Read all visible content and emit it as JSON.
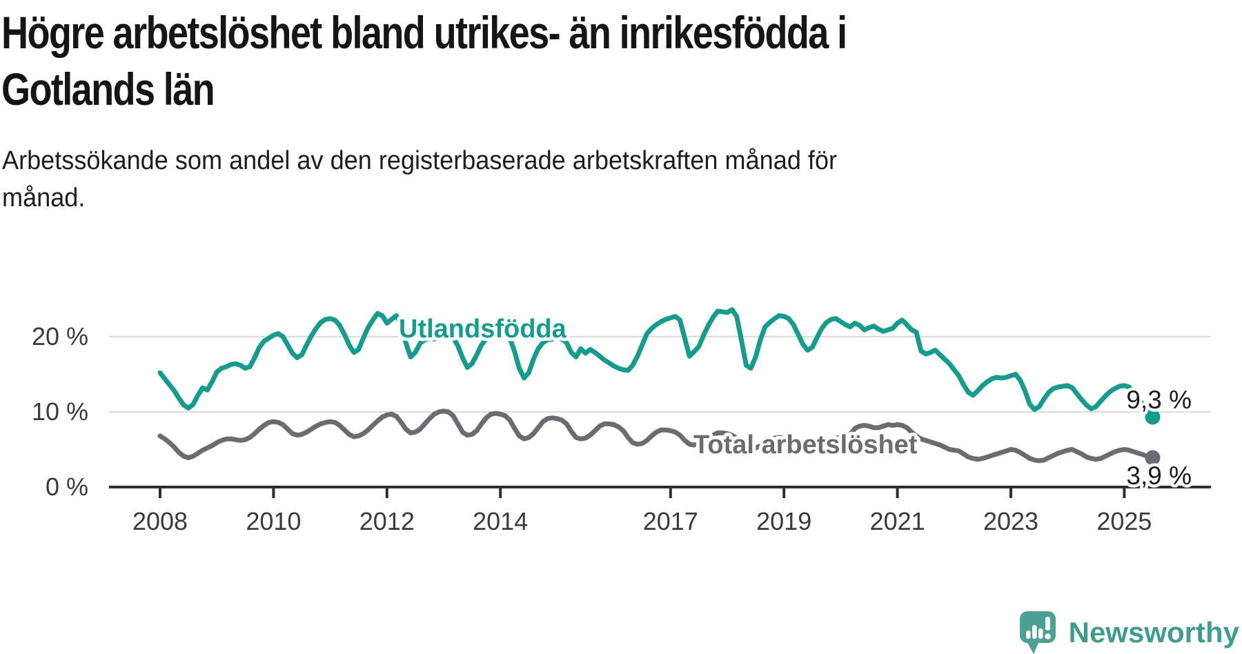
{
  "header": {
    "title_line1": "Högre arbetslöshet bland utrikes- än inrikesfödda i",
    "title_line2": "Gotlands län",
    "subtitle_line1": "Arbetssökande som andel av den registerbaserade arbetskraften månad för",
    "subtitle_line2": "månad."
  },
  "colors": {
    "accent_teal": "#169B8C",
    "series_gray": "#6B6B72",
    "axis": "#2E2E2E",
    "grid": "#DBDBDB",
    "tick_text": "#3A3A3A",
    "value_text": "#1A1A1A",
    "brand_teal": "#3F9C8E",
    "logo_teal": "#4CA094"
  },
  "chart_data": {
    "type": "line",
    "unit": "%",
    "x_start": "2008-01",
    "x_end": "2025-07",
    "x_tick_labels": [
      "2008",
      "2010",
      "2012",
      "2014",
      "2017",
      "2019",
      "2021",
      "2023",
      "2025"
    ],
    "y_ticks": [
      {
        "value": 0,
        "label": "0 %"
      },
      {
        "value": 10,
        "label": "10 %"
      },
      {
        "value": 20,
        "label": "20 %"
      }
    ],
    "ylim": [
      0,
      26
    ],
    "grid": "horizontal-only",
    "legend_position": "inline-labels",
    "series": [
      {
        "name": "Utlandsfödda",
        "color": "#169B8C",
        "end_label": "9,3 %",
        "end_value": 9.3,
        "values": [
          15.2,
          14.4,
          13.6,
          12.8,
          11.8,
          10.9,
          10.5,
          11.0,
          12.2,
          13.2,
          12.9,
          14.0,
          15.3,
          15.8,
          16.0,
          16.3,
          16.4,
          16.2,
          15.8,
          16.0,
          17.2,
          18.6,
          19.4,
          19.8,
          20.2,
          20.4,
          20.0,
          18.9,
          17.8,
          17.2,
          17.6,
          18.9,
          20.1,
          21.1,
          21.9,
          22.3,
          22.4,
          22.2,
          21.5,
          20.3,
          18.9,
          17.9,
          18.3,
          19.8,
          21.2,
          22.2,
          23.1,
          22.8,
          21.8,
          22.3,
          22.8,
          21.6,
          19.2,
          17.3,
          17.9,
          19.1,
          19.6,
          19.8,
          19.7,
          19.8,
          20.0,
          20.3,
          19.9,
          18.8,
          17.2,
          15.9,
          16.4,
          17.6,
          18.9,
          19.7,
          20.1,
          20.2,
          20.4,
          20.5,
          19.8,
          18.0,
          15.8,
          14.5,
          15.2,
          17.0,
          18.4,
          19.2,
          19.6,
          19.7,
          19.8,
          19.7,
          19.2,
          17.9,
          17.3,
          18.4,
          17.8,
          18.3,
          17.9,
          17.4,
          16.9,
          16.5,
          16.1,
          15.8,
          15.6,
          15.5,
          16.2,
          17.4,
          18.9,
          20.4,
          21.1,
          21.6,
          22.0,
          22.3,
          22.5,
          22.7,
          22.2,
          19.8,
          17.4,
          18.0,
          18.7,
          20.2,
          21.5,
          22.6,
          23.4,
          23.3,
          23.2,
          23.6,
          22.7,
          19.5,
          16.2,
          15.8,
          17.3,
          19.6,
          21.3,
          21.9,
          22.4,
          22.8,
          22.7,
          22.4,
          21.6,
          20.3,
          19.0,
          18.2,
          18.6,
          19.9,
          21.1,
          21.9,
          22.3,
          22.4,
          22.0,
          21.6,
          21.3,
          21.8,
          21.5,
          20.9,
          21.2,
          21.4,
          21.0,
          20.7,
          20.9,
          21.1,
          21.8,
          22.2,
          21.6,
          20.9,
          20.6,
          18.1,
          17.7,
          17.9,
          18.2,
          17.6,
          17.0,
          16.4,
          15.6,
          14.8,
          13.6,
          12.6,
          12.2,
          12.8,
          13.5,
          14.0,
          14.4,
          14.6,
          14.5,
          14.6,
          14.8,
          15.0,
          14.2,
          12.8,
          11.0,
          10.3,
          10.7,
          11.7,
          12.6,
          13.1,
          13.3,
          13.4,
          13.5,
          13.2,
          12.4,
          11.6,
          10.9,
          10.4,
          10.7,
          11.4,
          12.1,
          12.7,
          13.1,
          13.4,
          13.5,
          13.3,
          12.6,
          11.8,
          10.9,
          9.9,
          9.3
        ]
      },
      {
        "name": "Total arbetslöshet",
        "color": "#6B6B72",
        "end_label": "3,9 %",
        "end_value": 3.9,
        "values": [
          6.8,
          6.4,
          5.9,
          5.3,
          4.6,
          4.1,
          3.9,
          4.1,
          4.5,
          4.9,
          5.2,
          5.5,
          5.9,
          6.2,
          6.4,
          6.4,
          6.3,
          6.2,
          6.3,
          6.6,
          7.1,
          7.7,
          8.2,
          8.6,
          8.7,
          8.6,
          8.3,
          7.7,
          7.1,
          6.9,
          7.0,
          7.3,
          7.7,
          8.1,
          8.4,
          8.6,
          8.7,
          8.6,
          8.2,
          7.6,
          7.0,
          6.7,
          6.8,
          7.1,
          7.6,
          8.2,
          8.8,
          9.3,
          9.6,
          9.7,
          9.4,
          8.6,
          7.7,
          7.2,
          7.3,
          7.7,
          8.4,
          9.1,
          9.7,
          10.0,
          10.1,
          10.0,
          9.5,
          8.4,
          7.3,
          6.9,
          7.0,
          7.5,
          8.4,
          9.2,
          9.7,
          9.8,
          9.7,
          9.5,
          8.9,
          7.8,
          6.8,
          6.4,
          6.6,
          7.1,
          7.9,
          8.7,
          9.1,
          9.2,
          9.1,
          8.9,
          8.4,
          7.4,
          6.6,
          6.4,
          6.5,
          6.9,
          7.5,
          8.1,
          8.4,
          8.4,
          8.3,
          8.0,
          7.5,
          6.6,
          5.9,
          5.7,
          5.8,
          6.2,
          6.8,
          7.3,
          7.6,
          7.6,
          7.5,
          7.3,
          6.9,
          6.2,
          5.7,
          5.6,
          5.7,
          6.0,
          6.5,
          6.9,
          7.2,
          7.2,
          7.1,
          6.9,
          6.5,
          5.8,
          5.3,
          5.1,
          5.2,
          5.5,
          5.9,
          6.3,
          6.5,
          6.6,
          6.5,
          6.4,
          6.1,
          5.6,
          5.2,
          5.0,
          5.1,
          5.4,
          5.8,
          6.2,
          6.4,
          6.5,
          6.6,
          6.6,
          7.0,
          7.8,
          8.1,
          8.2,
          8.1,
          7.9,
          7.9,
          8.1,
          8.3,
          8.2,
          8.3,
          8.2,
          7.9,
          7.3,
          6.8,
          6.4,
          6.2,
          6.0,
          5.8,
          5.6,
          5.3,
          5.0,
          4.9,
          4.8,
          4.4,
          4.0,
          3.8,
          3.7,
          3.8,
          4.0,
          4.2,
          4.4,
          4.6,
          4.8,
          5.0,
          4.9,
          4.6,
          4.2,
          3.8,
          3.6,
          3.5,
          3.6,
          3.9,
          4.2,
          4.5,
          4.7,
          4.9,
          5.0,
          4.7,
          4.4,
          4.0,
          3.8,
          3.7,
          3.8,
          4.1,
          4.4,
          4.7,
          4.9,
          5.0,
          4.9,
          4.7,
          4.5,
          4.3,
          4.0,
          3.9
        ]
      }
    ]
  },
  "footer": {
    "brand": "Newsworthy"
  }
}
